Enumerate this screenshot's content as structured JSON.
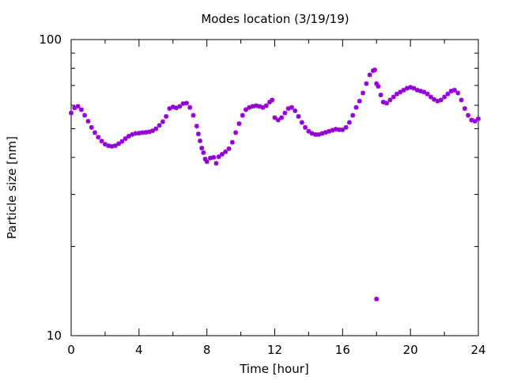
{
  "chart_data": {
    "type": "scatter",
    "title": "Modes location (3/19/19)",
    "xlabel": "Time [hour]",
    "ylabel": "Particle size [nm]",
    "xlim": [
      0,
      24
    ],
    "ylim": [
      10,
      100
    ],
    "yscale": "log",
    "grid": false,
    "marker_color": "#9400d3",
    "marker_style": "star",
    "x_ticks": [
      0,
      4,
      8,
      12,
      16,
      20,
      24
    ],
    "x_tick_labels": [
      "0",
      "4",
      "8",
      "12",
      "16",
      "20",
      "24"
    ],
    "y_ticks": [
      10,
      100
    ],
    "y_tick_labels": [
      "10",
      "100"
    ],
    "series": [
      {
        "points": [
          [
            0.0,
            56.5
          ],
          [
            0.2,
            58.8
          ],
          [
            0.4,
            59.5
          ],
          [
            0.6,
            58.0
          ],
          [
            0.8,
            55.5
          ],
          [
            1.0,
            53.0
          ],
          [
            1.2,
            50.5
          ],
          [
            1.4,
            48.5
          ],
          [
            1.6,
            46.8
          ],
          [
            1.8,
            45.4
          ],
          [
            2.0,
            44.3
          ],
          [
            2.2,
            43.8
          ],
          [
            2.4,
            43.6
          ],
          [
            2.6,
            43.8
          ],
          [
            2.8,
            44.5
          ],
          [
            3.0,
            45.3
          ],
          [
            3.2,
            46.3
          ],
          [
            3.4,
            47.2
          ],
          [
            3.6,
            47.8
          ],
          [
            3.8,
            48.2
          ],
          [
            4.0,
            48.3
          ],
          [
            4.2,
            48.5
          ],
          [
            4.4,
            48.6
          ],
          [
            4.6,
            48.8
          ],
          [
            4.8,
            49.2
          ],
          [
            5.0,
            50.0
          ],
          [
            5.2,
            51.3
          ],
          [
            5.4,
            52.8
          ],
          [
            5.6,
            55.0
          ],
          [
            5.8,
            58.5
          ],
          [
            6.0,
            59.2
          ],
          [
            6.2,
            58.8
          ],
          [
            6.4,
            59.5
          ],
          [
            6.6,
            60.8
          ],
          [
            6.8,
            61.0
          ],
          [
            7.0,
            59.0
          ],
          [
            7.2,
            55.5
          ],
          [
            7.4,
            51.0
          ],
          [
            7.5,
            48.0
          ],
          [
            7.6,
            45.5
          ],
          [
            7.7,
            43.0
          ],
          [
            7.8,
            41.5
          ],
          [
            7.9,
            39.5
          ],
          [
            8.0,
            38.7
          ],
          [
            8.2,
            39.8
          ],
          [
            8.4,
            40.0
          ],
          [
            8.55,
            38.2
          ],
          [
            8.7,
            40.2
          ],
          [
            8.9,
            41.0
          ],
          [
            9.1,
            41.8
          ],
          [
            9.3,
            42.8
          ],
          [
            9.5,
            45.0
          ],
          [
            9.7,
            48.5
          ],
          [
            9.9,
            52.0
          ],
          [
            10.1,
            55.5
          ],
          [
            10.3,
            58.0
          ],
          [
            10.5,
            59.0
          ],
          [
            10.7,
            59.5
          ],
          [
            10.9,
            59.8
          ],
          [
            11.1,
            59.5
          ],
          [
            11.3,
            59.0
          ],
          [
            11.5,
            59.8
          ],
          [
            11.7,
            61.5
          ],
          [
            11.85,
            62.5
          ],
          [
            12.0,
            54.5
          ],
          [
            12.2,
            53.5
          ],
          [
            12.4,
            54.5
          ],
          [
            12.6,
            56.5
          ],
          [
            12.8,
            58.5
          ],
          [
            13.0,
            59.0
          ],
          [
            13.2,
            57.5
          ],
          [
            13.4,
            55.0
          ],
          [
            13.6,
            52.5
          ],
          [
            13.8,
            50.5
          ],
          [
            14.0,
            49.0
          ],
          [
            14.2,
            48.2
          ],
          [
            14.4,
            47.8
          ],
          [
            14.6,
            47.8
          ],
          [
            14.8,
            48.2
          ],
          [
            15.0,
            48.6
          ],
          [
            15.2,
            49.0
          ],
          [
            15.4,
            49.4
          ],
          [
            15.6,
            49.8
          ],
          [
            15.8,
            49.6
          ],
          [
            16.0,
            49.6
          ],
          [
            16.2,
            50.5
          ],
          [
            16.4,
            52.5
          ],
          [
            16.6,
            55.5
          ],
          [
            16.8,
            59.0
          ],
          [
            17.0,
            62.0
          ],
          [
            17.2,
            66.0
          ],
          [
            17.4,
            71.0
          ],
          [
            17.6,
            76.0
          ],
          [
            17.8,
            78.5
          ],
          [
            17.9,
            79.0
          ],
          [
            18.0,
            13.3
          ],
          [
            18.0,
            71.0
          ],
          [
            18.1,
            69.5
          ],
          [
            18.25,
            65.0
          ],
          [
            18.4,
            61.5
          ],
          [
            18.6,
            61.0
          ],
          [
            18.8,
            62.5
          ],
          [
            19.0,
            64.0
          ],
          [
            19.2,
            65.5
          ],
          [
            19.4,
            66.5
          ],
          [
            19.6,
            67.5
          ],
          [
            19.8,
            68.5
          ],
          [
            20.0,
            69.0
          ],
          [
            20.2,
            68.5
          ],
          [
            20.4,
            67.5
          ],
          [
            20.6,
            67.0
          ],
          [
            20.8,
            66.5
          ],
          [
            21.0,
            65.5
          ],
          [
            21.2,
            64.0
          ],
          [
            21.4,
            62.8
          ],
          [
            21.6,
            62.0
          ],
          [
            21.8,
            62.5
          ],
          [
            22.0,
            64.0
          ],
          [
            22.2,
            65.5
          ],
          [
            22.4,
            67.0
          ],
          [
            22.6,
            67.5
          ],
          [
            22.8,
            66.0
          ],
          [
            23.0,
            62.5
          ],
          [
            23.2,
            58.5
          ],
          [
            23.4,
            55.5
          ],
          [
            23.6,
            53.5
          ],
          [
            23.8,
            53.0
          ],
          [
            24.0,
            54.0
          ]
        ]
      }
    ]
  }
}
